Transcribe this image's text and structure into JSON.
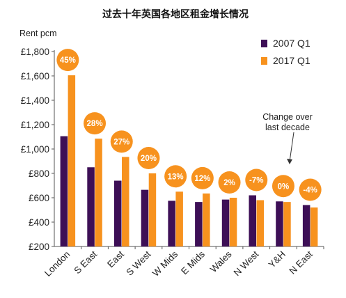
{
  "chart_data": {
    "type": "bar",
    "title": "过去十年英国各地区租金增长情况",
    "ylabel": "Rent pcm",
    "xlabel": "",
    "ylim": [
      200,
      1800
    ],
    "yticks": [
      200,
      400,
      600,
      800,
      1000,
      1200,
      1400,
      1600,
      1800
    ],
    "ytick_labels": [
      "£200",
      "£400",
      "£600",
      "£800",
      "£1,000",
      "£1,200",
      "£1,400",
      "£1,600",
      "£1,800"
    ],
    "categories": [
      "London",
      "S East",
      "East",
      "S West",
      "W Mids",
      "E Mids",
      "Wales",
      "N West",
      "Y&H",
      "N East"
    ],
    "series": [
      {
        "name": "2007 Q1",
        "color": "#3d0f56",
        "values": [
          1105,
          850,
          740,
          665,
          575,
          565,
          585,
          620,
          570,
          540
        ]
      },
      {
        "name": "2017 Q1",
        "color": "#f7921e",
        "values": [
          1605,
          1085,
          935,
          800,
          650,
          635,
          600,
          580,
          565,
          520
        ]
      }
    ],
    "change_labels": [
      "45%",
      "28%",
      "27%",
      "20%",
      "13%",
      "12%",
      "2%",
      "-7%",
      "0%",
      "-4%"
    ],
    "bubble_color": "#f7921e",
    "legend_position": "top-right",
    "grid": false,
    "annotation": {
      "lines": [
        "Change over",
        "last decade"
      ]
    }
  }
}
